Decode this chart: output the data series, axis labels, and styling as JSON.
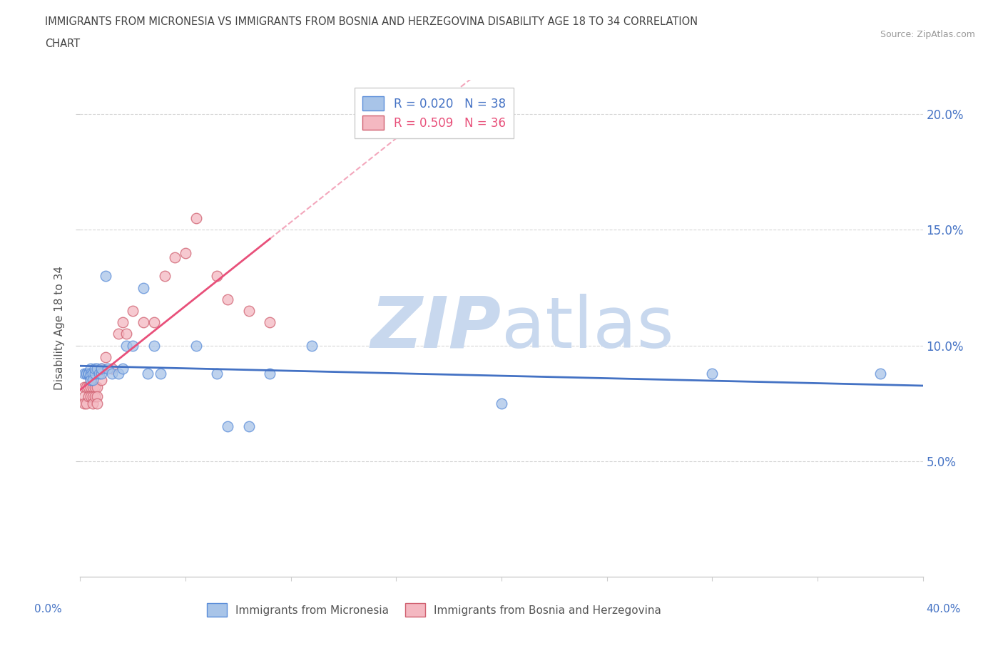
{
  "title_line1": "IMMIGRANTS FROM MICRONESIA VS IMMIGRANTS FROM BOSNIA AND HERZEGOVINA DISABILITY AGE 18 TO 34 CORRELATION",
  "title_line2": "CHART",
  "source": "Source: ZipAtlas.com",
  "ylabel": "Disability Age 18 to 34",
  "x_lim": [
    0.0,
    0.4
  ],
  "y_lim": [
    0.0,
    0.215
  ],
  "y_ticks": [
    0.05,
    0.1,
    0.15,
    0.2
  ],
  "y_tick_labels": [
    "5.0%",
    "10.0%",
    "15.0%",
    "20.0%"
  ],
  "x_ticks": [
    0.0,
    0.05,
    0.1,
    0.15,
    0.2,
    0.25,
    0.3,
    0.35,
    0.4
  ],
  "legend_r1": "R = 0.020",
  "legend_n1": "N = 38",
  "legend_r2": "R = 0.509",
  "legend_n2": "N = 36",
  "color_mic_fill": "#A8C4E8",
  "color_mic_edge": "#5B8DD9",
  "color_mic_line": "#4472C4",
  "color_bos_fill": "#F4B8C1",
  "color_bos_edge": "#D06070",
  "color_bos_line": "#E8507A",
  "watermark_color": "#C8D8EE",
  "mic_x": [
    0.002,
    0.003,
    0.003,
    0.004,
    0.004,
    0.004,
    0.005,
    0.005,
    0.005,
    0.005,
    0.006,
    0.006,
    0.007,
    0.007,
    0.008,
    0.009,
    0.01,
    0.01,
    0.012,
    0.013,
    0.015,
    0.018,
    0.02,
    0.022,
    0.025,
    0.03,
    0.032,
    0.035,
    0.038,
    0.055,
    0.065,
    0.07,
    0.08,
    0.09,
    0.11,
    0.2,
    0.3,
    0.38
  ],
  "mic_y": [
    0.088,
    0.088,
    0.088,
    0.088,
    0.088,
    0.088,
    0.09,
    0.088,
    0.087,
    0.085,
    0.088,
    0.085,
    0.088,
    0.09,
    0.09,
    0.088,
    0.088,
    0.09,
    0.13,
    0.09,
    0.088,
    0.088,
    0.09,
    0.1,
    0.1,
    0.125,
    0.088,
    0.1,
    0.088,
    0.1,
    0.088,
    0.065,
    0.065,
    0.088,
    0.1,
    0.075,
    0.088,
    0.088
  ],
  "bos_x": [
    0.002,
    0.002,
    0.002,
    0.003,
    0.003,
    0.004,
    0.004,
    0.005,
    0.005,
    0.005,
    0.006,
    0.006,
    0.006,
    0.007,
    0.007,
    0.008,
    0.008,
    0.008,
    0.01,
    0.01,
    0.012,
    0.015,
    0.018,
    0.02,
    0.022,
    0.025,
    0.03,
    0.035,
    0.04,
    0.045,
    0.05,
    0.055,
    0.065,
    0.07,
    0.08,
    0.09
  ],
  "bos_y": [
    0.082,
    0.078,
    0.075,
    0.082,
    0.075,
    0.082,
    0.078,
    0.085,
    0.082,
    0.078,
    0.082,
    0.078,
    0.075,
    0.082,
    0.078,
    0.082,
    0.078,
    0.075,
    0.09,
    0.085,
    0.095,
    0.09,
    0.105,
    0.11,
    0.105,
    0.115,
    0.11,
    0.11,
    0.13,
    0.138,
    0.14,
    0.155,
    0.13,
    0.12,
    0.115,
    0.11
  ]
}
